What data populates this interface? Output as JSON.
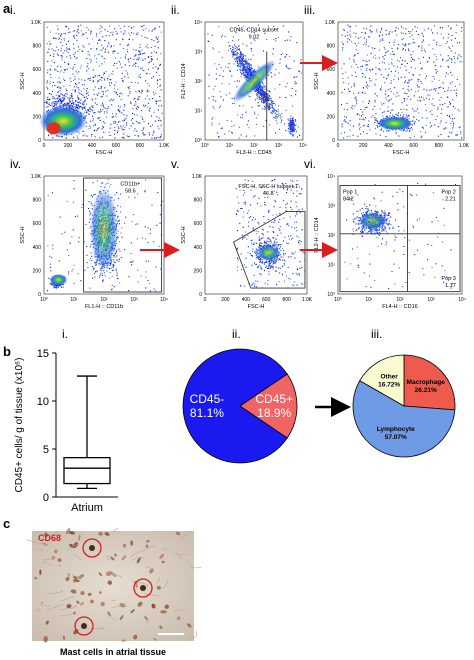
{
  "figure": {
    "panel_a": {
      "letter": "a",
      "plots": [
        {
          "label": "i.",
          "y_axis": "SSC-H",
          "x_axis": "FSC-H",
          "y_ticks": [
            "1.0K",
            "800",
            "600",
            "400",
            "200",
            "0"
          ],
          "x_ticks": [
            "0",
            "200",
            "400",
            "600",
            "800",
            "1.0K"
          ],
          "gate_name": "",
          "gate_value": ""
        },
        {
          "label": "ii.",
          "y_axis": "FL2-H :: CD14",
          "x_axis": "FL3-H :: CD45",
          "y_ticks": [
            "10⁴",
            "10³",
            "10²",
            "10¹",
            "10⁰"
          ],
          "x_ticks": [
            "10⁰",
            "10¹",
            "10²",
            "10³",
            "10⁴"
          ],
          "gate_name": "CD45, CD14 subset",
          "gate_value": "9.02"
        },
        {
          "label": "iii.",
          "y_axis": "SSC-H",
          "x_axis": "FSC-H",
          "y_ticks": [
            "1.0K",
            "800",
            "600",
            "400",
            "200",
            "0"
          ],
          "x_ticks": [
            "0",
            "200",
            "400",
            "600",
            "800",
            "1.0K"
          ],
          "gate_name": "",
          "gate_value": ""
        },
        {
          "label": "iv.",
          "y_axis": "SSC-H",
          "x_axis": "FL1-H :: CD11b",
          "y_ticks": [
            "1.0K",
            "800",
            "600",
            "400",
            "200",
            "0"
          ],
          "x_ticks": [
            "10⁰",
            "10¹",
            "10²",
            "10³",
            "10⁴"
          ],
          "gate_name": "CD11b+",
          "gate_value": "58.6"
        },
        {
          "label": "v.",
          "y_axis": "SSC-H",
          "x_axis": "FSC-H",
          "y_ticks": [
            "1.0K",
            "800",
            "600",
            "400",
            "200",
            "0"
          ],
          "x_ticks": [
            "0",
            "200",
            "400",
            "600",
            "800",
            "1.0K"
          ],
          "gate_name": "FSC-H, SSC-H subset-1",
          "gate_value": "46.8"
        },
        {
          "label": "vi.",
          "y_axis": "FL2-H :: CD14",
          "x_axis": "FL4-H :: CD16",
          "y_ticks": [
            "10⁴",
            "10³",
            "10²",
            "10¹",
            "10⁰"
          ],
          "x_ticks": [
            "10⁰",
            "10¹",
            "10²",
            "10³",
            "10⁴"
          ],
          "gate_name": "",
          "gate_value": "",
          "quadrants": [
            {
              "name": "Pop 1",
              "value": "84.2"
            },
            {
              "name": "Pop 2",
              "value": "2.21"
            },
            {
              "name": "Pop 3",
              "value": "1.17"
            }
          ]
        }
      ]
    },
    "panel_b": {
      "letter": "b",
      "boxplot": {
        "label": "i.",
        "ylabel": "CD45+ cells/ g of tissue (x10⁶)",
        "xlabel": "Atrium",
        "y_ticks": [
          "0",
          "5",
          "10",
          "15"
        ]
      },
      "pie_ii": {
        "label": "ii."
      },
      "pie_iii": {
        "label": "iii."
      }
    },
    "panel_c": {
      "letter": "c",
      "stain": "CD68",
      "caption": "Mast cells in atrial tissue"
    },
    "colors": {
      "cd45_neg": "#1a1af0",
      "cd45_pos": "#f06464",
      "macrophage": "#ef5a4e",
      "lymphocyte": "#6e9ae6",
      "other": "#fafad0",
      "gate_arrow": "#d81e1e"
    }
  },
  "chart_data": [
    {
      "type": "boxplot",
      "title": "",
      "xlabel": "Atrium",
      "ylabel": "CD45+ cells/ g of tissue (x10⁶)",
      "ylim": [
        0,
        15
      ],
      "categories": [
        "Atrium"
      ],
      "min": 0.9,
      "q1": 1.4,
      "median": 3.0,
      "q3": 4.1,
      "max": 12.6
    },
    {
      "type": "pie",
      "categories": [
        "CD45-",
        "CD45+"
      ],
      "labels": [
        "CD45-\n81.1%",
        "CD45+\n18.9%"
      ],
      "values": [
        81.1,
        18.9
      ]
    },
    {
      "type": "pie",
      "categories": [
        "Macrophage",
        "Lymphocyte",
        "Other"
      ],
      "labels": [
        "Macrophage\n26.21%",
        "Lymphocyte\n57.07%",
        "Other\n16.72%"
      ],
      "values": [
        26.21,
        57.07,
        16.72
      ]
    }
  ]
}
